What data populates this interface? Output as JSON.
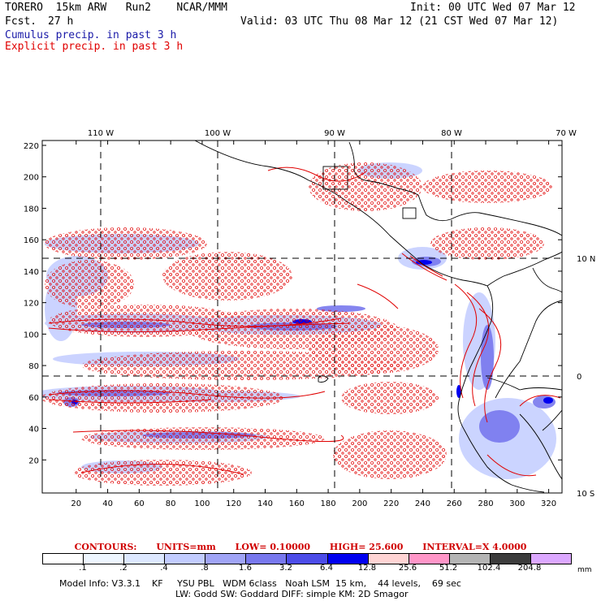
{
  "header": {
    "model_line": "TORERO  15km ARW   Run2    NCAR/MMM",
    "init": "Init: 00 UTC Wed 07 Mar 12",
    "fcst_label": "Fcst.",
    "fcst_value": "27 h",
    "valid": "Valid: 03 UTC Thu 08 Mar 12 (21 CST Wed 07 Mar 12)"
  },
  "legend": {
    "cumulus": "Cumulus precip. in past 3 h",
    "explicit": "Explicit precip. in past 3 h",
    "cumulus_color": "#1a1aa8",
    "explicit_color": "#e00000"
  },
  "map": {
    "top_lon_labels": [
      "110 W",
      "100 W",
      "90 W",
      "80 W",
      "70 W"
    ],
    "right_lat_labels": [
      "10 N",
      "0",
      "10 S"
    ],
    "left_y_ticks": [
      "20",
      "40",
      "60",
      "80",
      "100",
      "120",
      "140",
      "160",
      "180",
      "200",
      "220"
    ],
    "bottom_x_ticks": [
      "20",
      "40",
      "60",
      "80",
      "100",
      "120",
      "140",
      "160",
      "180",
      "200",
      "220",
      "240",
      "260",
      "280",
      "300",
      "320"
    ]
  },
  "contours": {
    "label": "CONTOURS:",
    "units": "UNITS=mm",
    "low": "LOW= 0.10000",
    "high": "HIGH=  25.600",
    "interval": "INTERVAL=X  4.0000"
  },
  "colorbar": {
    "labels": [
      ".1",
      ".2",
      ".4",
      ".8",
      "1.6",
      "3.2",
      "6.4",
      "12.8",
      "25.6",
      "51.2",
      "102.4",
      "204.8"
    ],
    "colors": [
      "#ffffff",
      "#eef6ff",
      "#dde8ff",
      "#c2ccff",
      "#a0a4f6",
      "#7878ee",
      "#4c4ce8",
      "#0000f0",
      "#ffd4d4",
      "#ff96c8",
      "#b4b4b4",
      "#3c3c3c",
      "#dca8ff"
    ],
    "unit": "mm"
  },
  "model_info": {
    "line1": "Model Info: V3.3.1    KF     YSU PBL   WDM 6class   Noah LSM  15 km,    44 levels,    69 sec",
    "line2": "LW: Godd SW: Goddard DIFF: simple KM: 2D Smagor"
  }
}
